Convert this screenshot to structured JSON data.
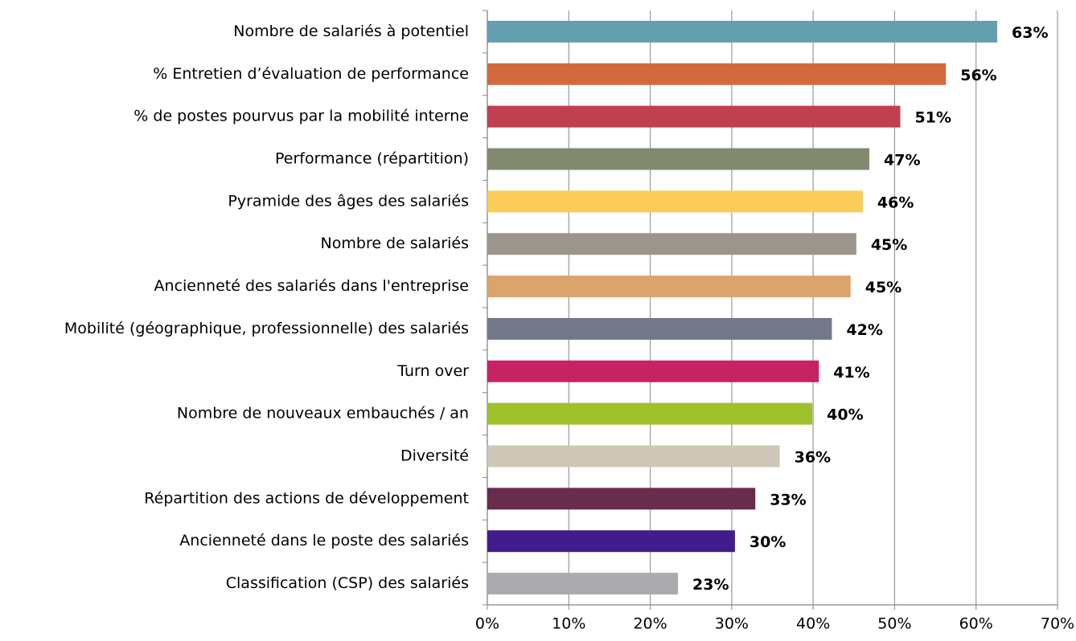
{
  "chart_data": {
    "type": "barh",
    "categories": [
      "Nombre de salariés à potentiel",
      "% Entretien d’évaluation de performance",
      "% de postes pourvus par la mobilité interne",
      "Performance (répartition)",
      "Pyramide des âges des salariés",
      "Nombre de salariés",
      "Ancienneté des salariés dans l'entreprise",
      "Mobilité (géographique, professionnelle) des salariés",
      "Turn over",
      "Nombre de nouveaux embauchés / an",
      "Diversité",
      "Répartition des actions de développement",
      "Ancienneté dans le poste des salariés",
      "Classification (CSP) des salariés"
    ],
    "values": [
      62.6,
      56.3,
      50.7,
      46.9,
      46.1,
      45.3,
      44.6,
      42.3,
      40.7,
      39.9,
      35.9,
      32.9,
      30.4,
      23.4
    ],
    "value_labels": [
      "63%",
      "56%",
      "51%",
      "47%",
      "46%",
      "45%",
      "45%",
      "42%",
      "41%",
      "40%",
      "36%",
      "33%",
      "30%",
      "23%"
    ],
    "colors": [
      "#62a0b0",
      "#d2693c",
      "#bf4050",
      "#818a70",
      "#fbcd58",
      "#9b968c",
      "#dca36a",
      "#737888",
      "#c92264",
      "#9fc12c",
      "#cfc7b8",
      "#682c4d",
      "#401c8c",
      "#aaaaaf"
    ],
    "xlim": [
      0,
      70
    ],
    "xticks": [
      {
        "value": 0,
        "label": "0%"
      },
      {
        "value": 10,
        "label": "10%"
      },
      {
        "value": 20,
        "label": "20%"
      },
      {
        "value": 30,
        "label": "30%"
      },
      {
        "value": 40,
        "label": "40%"
      },
      {
        "value": 50,
        "label": "50%"
      },
      {
        "value": 60,
        "label": "60%"
      },
      {
        "value": 70,
        "label": "70%"
      }
    ],
    "grid": true
  }
}
